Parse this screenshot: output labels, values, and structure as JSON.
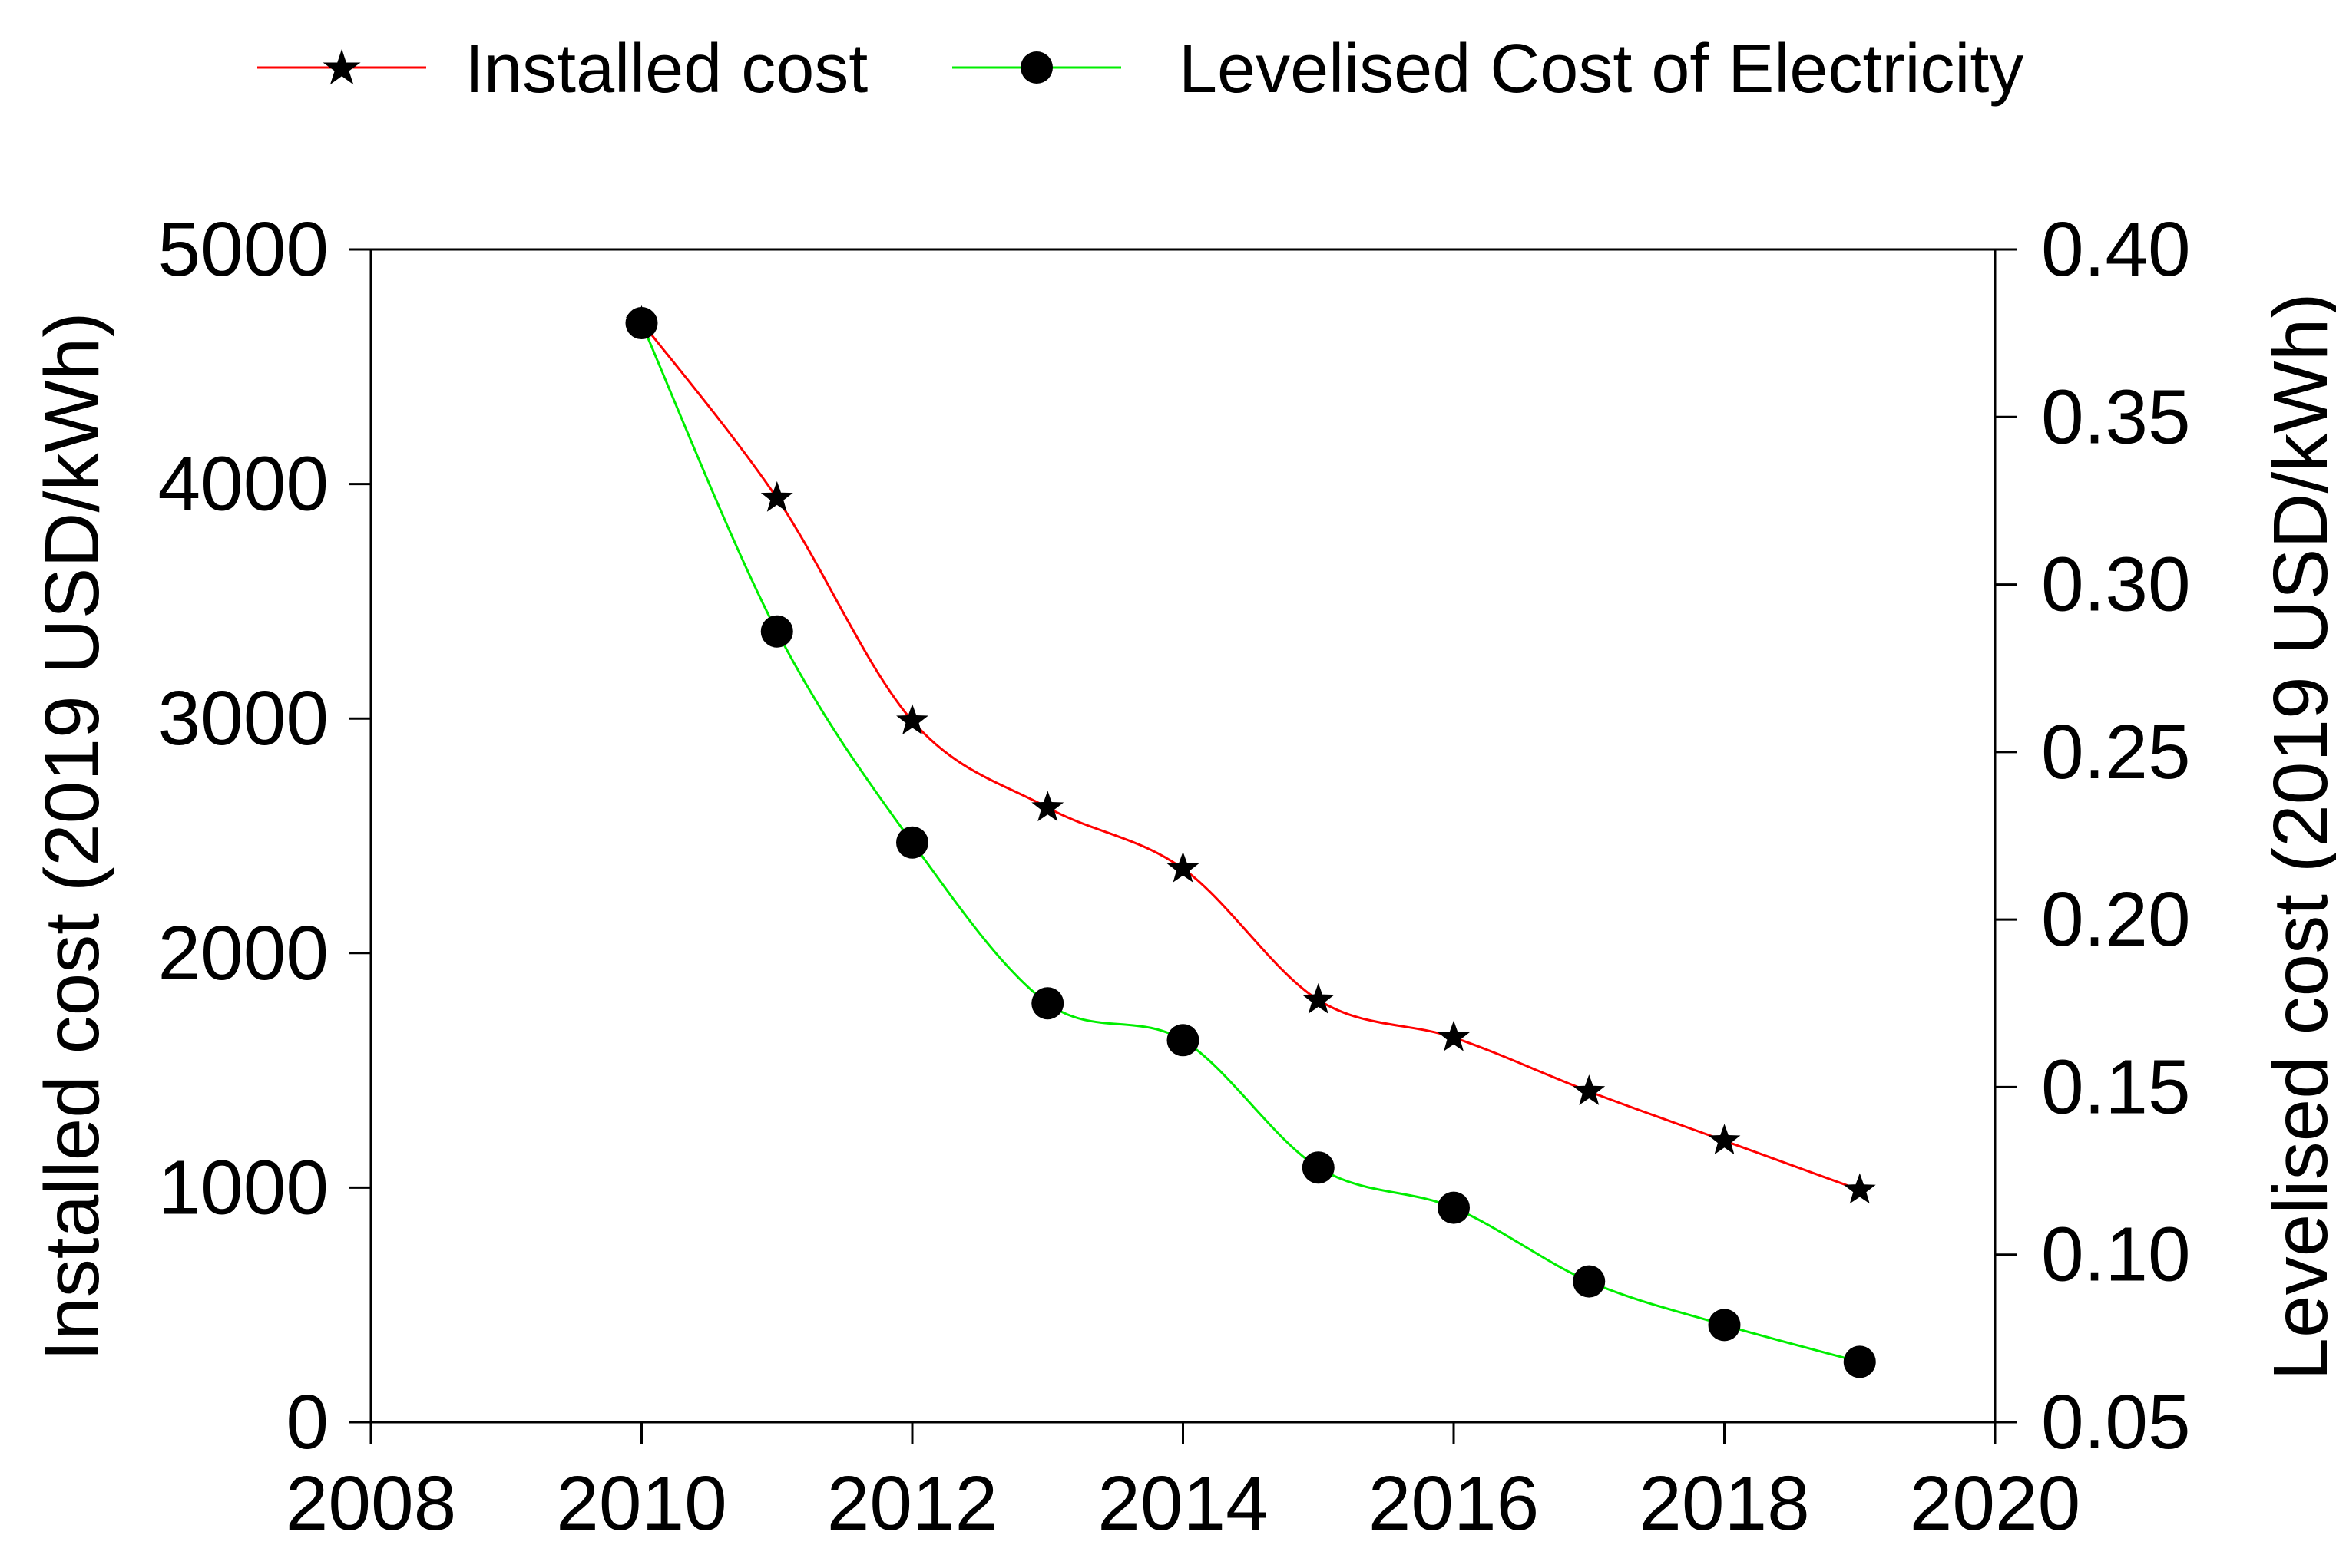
{
  "chart_data": {
    "type": "line",
    "title": "",
    "xlabel": "",
    "ylabel": "Installed cost (2019 USD/kWh)",
    "y2label": "Levelised cost (2019 USD/kWh)",
    "xlim": [
      2008,
      2020
    ],
    "ylim": [
      0,
      5000
    ],
    "y2lim": [
      0.05,
      0.4
    ],
    "grid": false,
    "legend_position": "top",
    "x_ticks": [
      "2008",
      "2010",
      "2012",
      "2014",
      "2016",
      "2018",
      "2020"
    ],
    "y_ticks": [
      "0",
      "1000",
      "2000",
      "3000",
      "4000",
      "5000"
    ],
    "y2_ticks": [
      "0.05",
      "0.10",
      "0.15",
      "0.20",
      "0.25",
      "0.30",
      "0.35",
      "0.40"
    ],
    "x": [
      2010,
      2011,
      2012,
      2013,
      2014,
      2015,
      2016,
      2017,
      2018,
      2019
    ],
    "series": [
      {
        "name": "Installed cost",
        "axis": "left",
        "color": "#ff0000",
        "marker": "star",
        "values": [
          4690,
          3940,
          2990,
          2620,
          2360,
          1800,
          1640,
          1410,
          1200,
          990
        ]
      },
      {
        "name": "Levelised Cost of Electricity",
        "axis": "right",
        "color": "#00ee00",
        "marker": "circle",
        "values": [
          0.378,
          0.286,
          0.223,
          0.175,
          0.164,
          0.126,
          0.114,
          0.092,
          0.079,
          0.068
        ]
      }
    ]
  }
}
